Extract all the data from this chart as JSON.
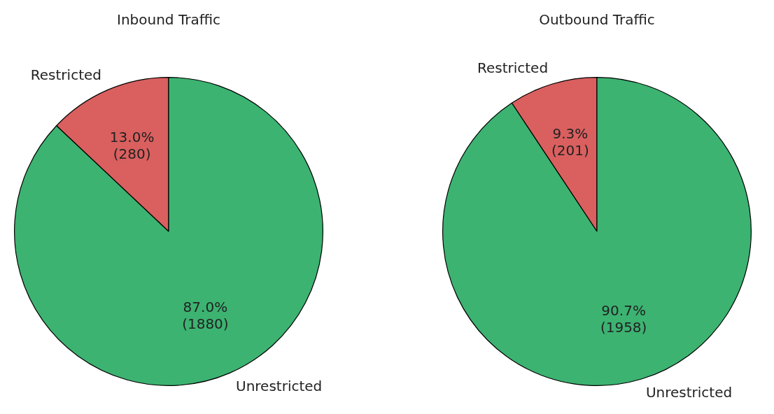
{
  "chart_data": [
    {
      "type": "pie",
      "title": "Inbound Traffic",
      "categories": [
        "Restricted",
        "Unrestricted"
      ],
      "values": [
        280,
        1880
      ],
      "colors": [
        "#d9605f",
        "#3cb371"
      ],
      "value_labels": [
        "13.0%\n(280)",
        "87.0%\n(1880)"
      ]
    },
    {
      "type": "pie",
      "title": "Outbound Traffic",
      "categories": [
        "Restricted",
        "Unrestricted"
      ],
      "values": [
        201,
        1958
      ],
      "colors": [
        "#d9605f",
        "#3cb371"
      ],
      "value_labels": [
        "9.3%\n(201)",
        "90.7%\n(1958)"
      ]
    }
  ]
}
